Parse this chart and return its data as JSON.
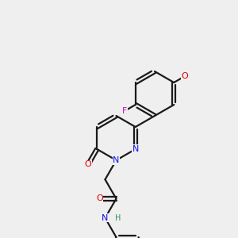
{
  "background_color": "#efefef",
  "bond_color": "#1a1a1a",
  "bond_lw": 1.6,
  "atom_colors": {
    "N": "#1010ee",
    "O": "#dd0000",
    "F": "#cc00cc",
    "H": "#2e8b57",
    "C": "#1a1a1a"
  },
  "font_size": 8.0,
  "bl": 0.28,
  "xlim": [
    0.1,
    3.1
  ],
  "ylim": [
    0.1,
    3.1
  ]
}
